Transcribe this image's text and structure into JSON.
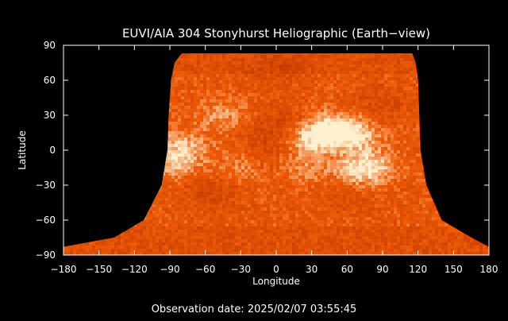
{
  "chart_data": {
    "type": "heatmap",
    "title": "EUVI/AIA 304 Stonyhurst Heliographic (Earth−view)",
    "xlabel": "Longitude",
    "ylabel": "Latitude",
    "xlim": [
      -180,
      180
    ],
    "ylim": [
      -90,
      90
    ],
    "x_ticks": [
      -180,
      -150,
      -120,
      -90,
      -60,
      -30,
      0,
      30,
      60,
      90,
      120,
      150,
      180
    ],
    "y_ticks": [
      90,
      60,
      30,
      0,
      -30,
      -60,
      -90
    ],
    "x_tick_labels": [
      "−180",
      "−150",
      "−120",
      "−90",
      "−60",
      "−30",
      "0",
      "30",
      "60",
      "90",
      "120",
      "150",
      "180"
    ],
    "y_tick_labels": [
      "90",
      "60",
      "30",
      "0",
      "−30",
      "−60",
      "−90"
    ],
    "grid": false,
    "colormap": {
      "background": "#000000",
      "low": "#b83200",
      "mid": "#ee5a06",
      "high": "#fff0d0"
    },
    "coverage_boundary": [
      {
        "latitude": 83,
        "lon_min": -80,
        "lon_max": 115
      },
      {
        "latitude": 75,
        "lon_min": -86,
        "lon_max": 118
      },
      {
        "latitude": 60,
        "lon_min": -89,
        "lon_max": 120
      },
      {
        "latitude": 30,
        "lon_min": -91,
        "lon_max": 121
      },
      {
        "latitude": 0,
        "lon_min": -92,
        "lon_max": 122
      },
      {
        "latitude": -30,
        "lon_min": -97,
        "lon_max": 127
      },
      {
        "latitude": -60,
        "lon_min": -112,
        "lon_max": 140
      },
      {
        "latitude": -75,
        "lon_min": -137,
        "lon_max": 165
      },
      {
        "latitude": -83,
        "lon_min": -180,
        "lon_max": 180
      },
      {
        "latitude": -90,
        "lon_min": -180,
        "lon_max": 180
      }
    ],
    "bright_regions": [
      {
        "lon": 50,
        "lat": 18,
        "intensity": 1.0
      },
      {
        "lon": 30,
        "lat": 10,
        "intensity": 0.85
      },
      {
        "lon": 70,
        "lat": 12,
        "intensity": 0.6
      },
      {
        "lon": -85,
        "lat": -10,
        "intensity": 0.65
      },
      {
        "lon": -78,
        "lat": 5,
        "intensity": 0.5
      },
      {
        "lon": 80,
        "lat": -15,
        "intensity": 0.75
      },
      {
        "lon": 65,
        "lat": -20,
        "intensity": 0.5
      },
      {
        "lon": -45,
        "lat": 30,
        "intensity": 0.45
      },
      {
        "lon": -30,
        "lat": -15,
        "intensity": 0.45
      },
      {
        "lon": 20,
        "lat": -15,
        "intensity": 0.4
      }
    ],
    "dark_regions": [
      {
        "lon": 5,
        "lat": 20,
        "intensity": 0.7
      },
      {
        "lon": -10,
        "lat": -5,
        "intensity": 0.5
      },
      {
        "lon": -55,
        "lat": -35,
        "intensity": 0.55
      },
      {
        "lon": 60,
        "lat": -35,
        "intensity": 0.5
      },
      {
        "lon": 0,
        "lat": 70,
        "intensity": 0.4
      },
      {
        "lon": 90,
        "lat": 40,
        "intensity": 0.45
      }
    ]
  },
  "footer": {
    "observation_text": "Observation date: 2025/02/07 03:55:45"
  }
}
